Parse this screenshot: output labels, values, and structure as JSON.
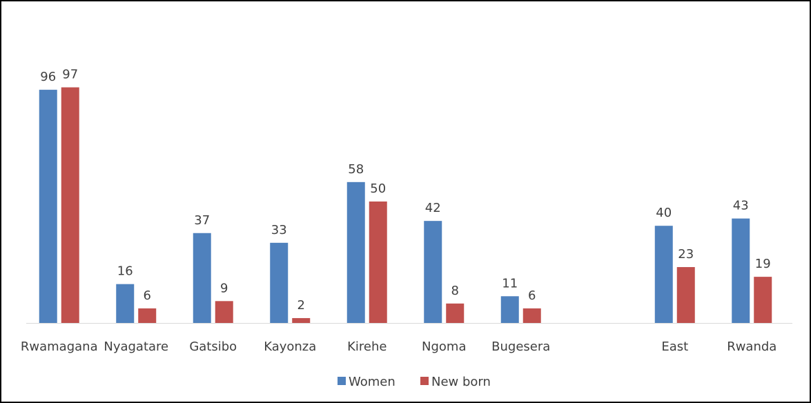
{
  "chart_data": {
    "type": "bar",
    "title": "",
    "xlabel": "",
    "ylabel": "",
    "ylim": [
      0,
      100
    ],
    "grid": false,
    "legend_position": "bottom",
    "categories": [
      "Rwamagana",
      "Nyagatare",
      "Gatsibo",
      "Kayonza",
      "Kirehe",
      "Ngoma",
      "Bugesera",
      "",
      "East",
      "Rwanda"
    ],
    "series": [
      {
        "name": "Women",
        "color": "#4f81bd",
        "values": [
          96,
          16,
          37,
          33,
          58,
          42,
          11,
          null,
          40,
          43
        ]
      },
      {
        "name": "New born",
        "color": "#c0504d",
        "values": [
          97,
          6,
          9,
          2,
          50,
          8,
          6,
          null,
          23,
          19
        ]
      }
    ]
  }
}
